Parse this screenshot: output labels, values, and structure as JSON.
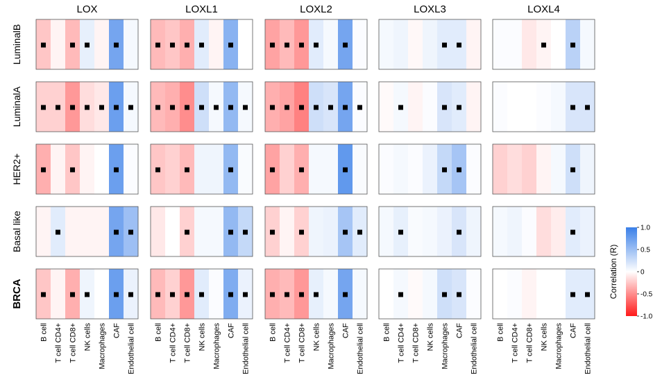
{
  "chart_data": {
    "type": "heatmap",
    "title": "",
    "genes": [
      "LOX",
      "LOXL1",
      "LOXL2",
      "LOXL3",
      "LOXL4"
    ],
    "subtypes": [
      "LuminalB",
      "LuminalA",
      "HER2+",
      "Basal like",
      "BRCA"
    ],
    "cell_types": [
      "B cell",
      "T cell CD4+",
      "T cell CD8+",
      "NK cells",
      "Macrophages",
      "CAF",
      "Endothelial cell"
    ],
    "colorbar": {
      "label": "Correlation (R)",
      "range": [
        -1.0,
        1.0
      ],
      "ticks": [
        1.0,
        0.5,
        0,
        -0.5,
        -1.0
      ],
      "tick_labels": [
        "1.0",
        "0.5",
        "0",
        "-0.5",
        "-1.0"
      ],
      "low_color": "#ff1a1a",
      "mid_color": "#ffffff",
      "high_color": "#3a7fe8"
    },
    "marker_meaning": "significant correlation",
    "panels": {
      "LuminalB": {
        "LOX": {
          "values": [
            -0.25,
            -0.05,
            -0.3,
            0.12,
            -0.05,
            0.7,
            0.05
          ],
          "sig": [
            1,
            0,
            1,
            1,
            0,
            1,
            0
          ]
        },
        "LOXL1": {
          "values": [
            -0.3,
            -0.25,
            -0.35,
            0.15,
            -0.05,
            0.6,
            0.0
          ],
          "sig": [
            1,
            1,
            1,
            1,
            0,
            1,
            0
          ]
        },
        "LOXL2": {
          "values": [
            -0.4,
            -0.3,
            -0.45,
            0.15,
            0.05,
            0.7,
            0.02
          ],
          "sig": [
            1,
            1,
            1,
            1,
            0,
            1,
            0
          ]
        },
        "LOXL3": {
          "values": [
            0.05,
            0.08,
            -0.03,
            0.08,
            0.15,
            0.15,
            -0.05
          ],
          "sig": [
            0,
            0,
            0,
            0,
            1,
            1,
            0
          ]
        },
        "LOXL4": {
          "values": [
            0.02,
            0.02,
            -0.1,
            -0.05,
            0.0,
            0.35,
            0.05
          ],
          "sig": [
            0,
            0,
            0,
            1,
            0,
            1,
            0
          ]
        }
      },
      "LuminalA": {
        "LOX": {
          "values": [
            -0.2,
            -0.2,
            -0.45,
            -0.15,
            -0.1,
            0.75,
            0.05
          ],
          "sig": [
            1,
            1,
            1,
            1,
            1,
            1,
            1
          ]
        },
        "LOXL1": {
          "values": [
            -0.3,
            -0.35,
            -0.5,
            0.25,
            0.05,
            0.55,
            0.05
          ],
          "sig": [
            1,
            1,
            1,
            1,
            1,
            1,
            1
          ]
        },
        "LOXL2": {
          "values": [
            -0.35,
            -0.4,
            -0.55,
            0.25,
            0.2,
            0.7,
            0.02
          ],
          "sig": [
            1,
            1,
            1,
            1,
            1,
            1,
            1
          ]
        },
        "LOXL3": {
          "values": [
            -0.02,
            0.05,
            -0.05,
            0.02,
            0.2,
            0.15,
            -0.05
          ],
          "sig": [
            0,
            1,
            0,
            0,
            1,
            1,
            0
          ]
        },
        "LOXL4": {
          "values": [
            0.02,
            0.0,
            0.0,
            0.02,
            0.05,
            0.2,
            0.2
          ],
          "sig": [
            0,
            0,
            0,
            0,
            0,
            1,
            1
          ]
        }
      },
      "HER2+": {
        "LOX": {
          "values": [
            -0.35,
            -0.05,
            -0.25,
            -0.05,
            0.0,
            0.75,
            0.02
          ],
          "sig": [
            1,
            0,
            1,
            0,
            0,
            1,
            0
          ]
        },
        "LOXL1": {
          "values": [
            -0.25,
            -0.2,
            -0.3,
            0.08,
            0.08,
            0.55,
            0.03
          ],
          "sig": [
            1,
            0,
            1,
            0,
            0,
            1,
            0
          ]
        },
        "LOXL2": {
          "values": [
            -0.4,
            -0.2,
            -0.35,
            0.05,
            0.05,
            0.8,
            0.03
          ],
          "sig": [
            1,
            0,
            1,
            0,
            0,
            1,
            0
          ]
        },
        "LOXL3": {
          "values": [
            0.02,
            0.05,
            0.02,
            0.1,
            0.3,
            0.45,
            0.02
          ],
          "sig": [
            0,
            0,
            0,
            0,
            1,
            1,
            0
          ]
        },
        "LOXL4": {
          "values": [
            -0.2,
            -0.15,
            -0.2,
            -0.05,
            0.05,
            0.25,
            0.08
          ],
          "sig": [
            0,
            0,
            0,
            0,
            0,
            1,
            0
          ]
        }
      },
      "Basal like": {
        "LOX": {
          "values": [
            -0.05,
            0.15,
            -0.05,
            -0.05,
            -0.05,
            0.7,
            0.5
          ],
          "sig": [
            0,
            1,
            0,
            0,
            0,
            1,
            1
          ]
        },
        "LOXL1": {
          "values": [
            -0.1,
            0.0,
            -0.2,
            0.05,
            0.05,
            0.55,
            0.3
          ],
          "sig": [
            0,
            0,
            1,
            0,
            0,
            1,
            1
          ]
        },
        "LOXL2": {
          "values": [
            -0.2,
            -0.05,
            -0.2,
            0.08,
            0.1,
            0.45,
            0.15
          ],
          "sig": [
            1,
            0,
            1,
            0,
            0,
            1,
            1
          ]
        },
        "LOXL3": {
          "values": [
            0.05,
            0.12,
            0.03,
            0.05,
            0.1,
            0.2,
            0.08
          ],
          "sig": [
            0,
            1,
            0,
            0,
            0,
            1,
            0
          ]
        },
        "LOXL4": {
          "values": [
            0.05,
            0.08,
            0.02,
            -0.15,
            -0.08,
            0.15,
            0.1
          ],
          "sig": [
            0,
            0,
            0,
            0,
            0,
            1,
            0
          ]
        }
      },
      "BRCA": {
        "LOX": {
          "values": [
            -0.25,
            -0.05,
            -0.35,
            0.08,
            0.0,
            0.75,
            0.1
          ],
          "sig": [
            1,
            0,
            1,
            1,
            0,
            1,
            1
          ]
        },
        "LOXL1": {
          "values": [
            -0.3,
            -0.2,
            -0.45,
            0.15,
            0.02,
            0.65,
            0.1
          ],
          "sig": [
            1,
            1,
            1,
            1,
            0,
            1,
            1
          ]
        },
        "LOXL2": {
          "values": [
            -0.35,
            -0.3,
            -0.45,
            0.12,
            0.05,
            0.7,
            0.05
          ],
          "sig": [
            1,
            1,
            1,
            1,
            0,
            1,
            0
          ]
        },
        "LOXL3": {
          "values": [
            0.0,
            0.05,
            -0.02,
            0.05,
            0.25,
            0.2,
            0.02
          ],
          "sig": [
            0,
            1,
            0,
            0,
            1,
            1,
            0
          ]
        },
        "LOXL4": {
          "values": [
            0.0,
            0.02,
            -0.05,
            0.0,
            0.0,
            0.15,
            0.15
          ],
          "sig": [
            0,
            0,
            0,
            0,
            0,
            1,
            1
          ]
        }
      }
    }
  }
}
